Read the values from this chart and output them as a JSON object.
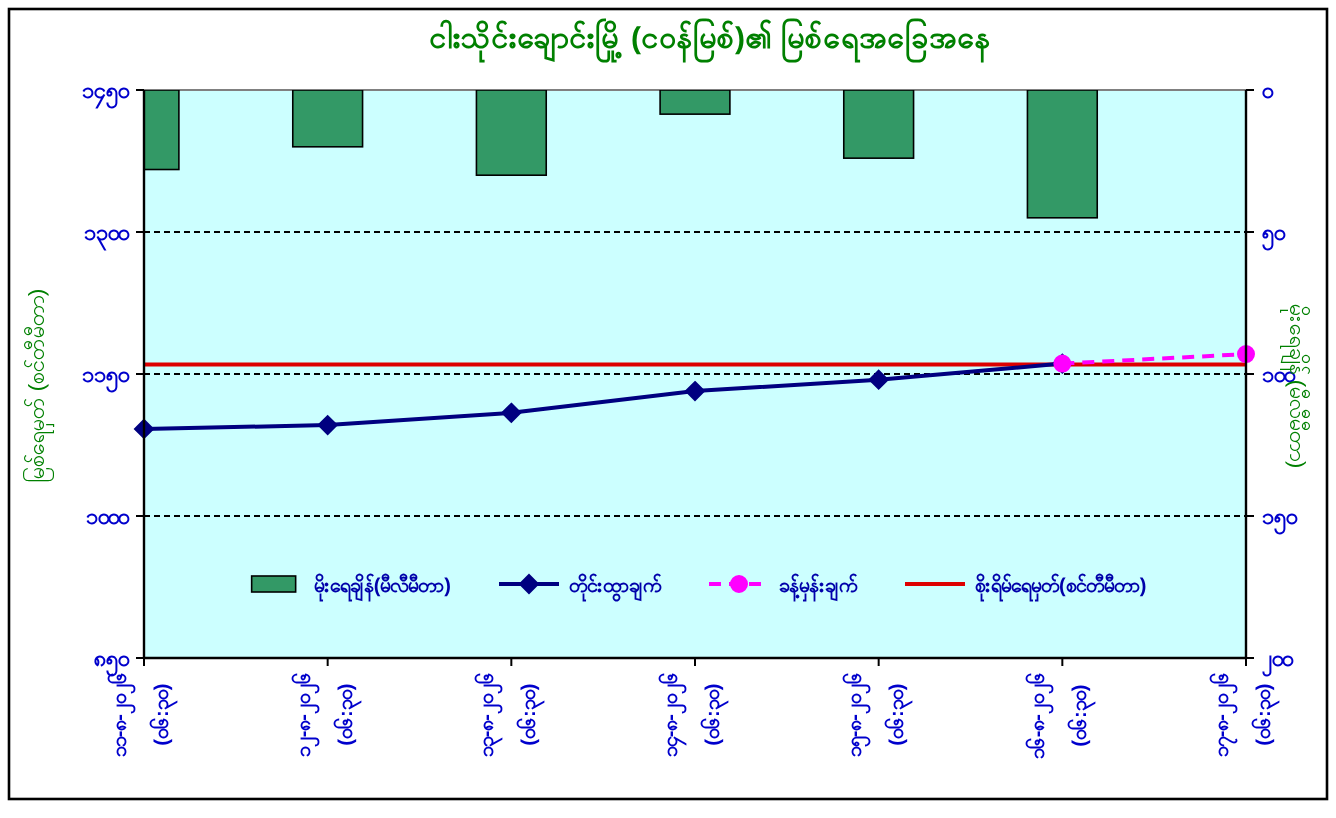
{
  "chart_data": {
    "type": "bar",
    "title": "ငါးသိုင်းချောင်းမြို့ (ငဝန်မြစ်)၏ မြစ်ရေအခြေအနေ",
    "ylabel": "မြစ်ရေမှတ် (စင်တီမီတာ)",
    "y2label": "မိုးရေချိန် (မီလီမီတာ)",
    "categories": [
      "၁၁-၈-၂၀၂၆\n(၀၆:၃၀)",
      "၁၂-၈-၂၀၂၆\n(၀၆:၃၀)",
      "၁၃-၈-၂၀၂၆\n(၀၆:၃၀)",
      "၁၄-၈-၂၀၂၆\n(၀၆:၃၀)",
      "၁၅-၈-၂၀၂၆\n(၀၆:၃၀)",
      "၁၆-၈-၂၀၂၆\n(၀၆:၃၀)",
      "၁၇-၈-၂၀၂၆\n(၀၆:၃၀)"
    ],
    "series": [
      {
        "name": "မိုးရေချိန်(မီလီမီတာ)",
        "axis": "y2",
        "color": "#339966",
        "values": [
          28,
          20,
          30,
          8.5,
          24,
          45,
          null
        ]
      },
      {
        "name": "တိုင်းထွာချက်",
        "type": "line",
        "color": "#000080",
        "marker": "diamond",
        "line_style": "solid",
        "values": [
          1092,
          1096,
          1109,
          1132,
          1144,
          1161,
          null
        ]
      },
      {
        "name": "ခန့်မှန်းချက်",
        "type": "line",
        "color": "#ff00ff",
        "marker": "circle",
        "line_style": "dashed",
        "values": [
          null,
          null,
          null,
          null,
          null,
          1161,
          1171
        ]
      }
    ],
    "ref_lines": [
      {
        "axis": "y",
        "value": 1160,
        "label": "စိုးရိမ်ရေမှတ်(စင်တီမီတာ)",
        "color": "#dd0000"
      }
    ],
    "ylim": [
      850,
      1450
    ],
    "yticks": [
      {
        "value": 850,
        "label": "၈၅၀"
      },
      {
        "value": 1000,
        "label": "၁၀၀၀"
      },
      {
        "value": 1150,
        "label": "၁၁၅၀"
      },
      {
        "value": 1300,
        "label": "၁၃၀၀"
      },
      {
        "value": 1450,
        "label": "၁၄၅၀"
      }
    ],
    "y2lim": [
      200,
      0
    ],
    "y2ticks": [
      {
        "value": 0,
        "label": "၀"
      },
      {
        "value": 50,
        "label": "၅၀"
      },
      {
        "value": 100,
        "label": "၁၀၀"
      },
      {
        "value": 150,
        "label": "၁၅၀"
      },
      {
        "value": 200,
        "label": "၂၀၀"
      }
    ],
    "grid": "y",
    "legend": "bottom"
  }
}
